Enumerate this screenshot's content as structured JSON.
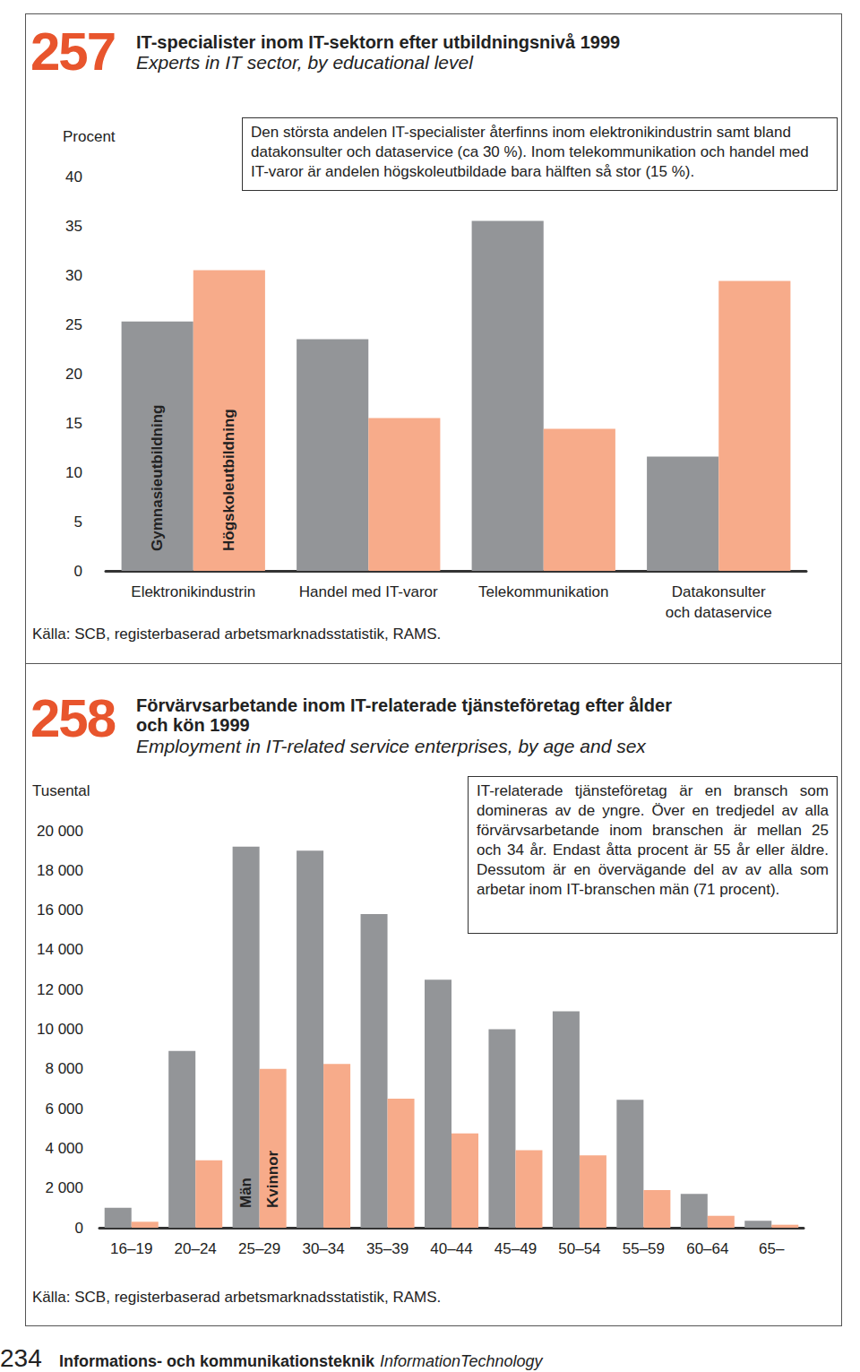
{
  "page": {
    "footer": {
      "page_number": "234",
      "section": "Informations- och kommunikationsteknik",
      "section_en": "InformationTechnology"
    }
  },
  "chart_data": [
    {
      "type": "bar",
      "number": "257",
      "title": "IT-specialister inom IT-sektorn efter utbildningsnivå 1999",
      "subtitle": "Experts in IT sector, by educational level",
      "ylabel": "Procent",
      "annotation": "Den största andelen IT-specialister återfinns inom elektronikindustrin samt bland datakonsulter och dataservice (ca 30 %). Inom telekommunikation och handel med IT-varor är andelen högskoleutbildade bara hälften så stor (15 %).",
      "source": "Källa: SCB, registerbaserad arbetsmarknadsstatistik, RAMS.",
      "categories": [
        "Elektronikindustrin",
        "Handel med IT-varor",
        "Telekommunikation",
        "Datakonsulter\noch dataservice"
      ],
      "series": [
        {
          "name": "Gymnasieutbildning",
          "color": "#939598",
          "values": [
            25.3,
            23.5,
            35.5,
            11.6
          ]
        },
        {
          "name": "Högskoleutbildning",
          "color": "#f7ab8a",
          "values": [
            30.5,
            15.5,
            14.4,
            29.4
          ]
        }
      ],
      "ylim": [
        0,
        40
      ],
      "yticks": [
        0,
        5,
        10,
        15,
        20,
        25,
        30,
        35,
        40
      ],
      "grid": false
    },
    {
      "type": "bar",
      "number": "258",
      "title": "Förvärvsarbetande inom IT-relaterade tjänsteföretag efter ålder\noch kön 1999",
      "subtitle": "Employment in IT-related service enterprises, by age and sex",
      "ylabel": "Tusental",
      "annotation": "IT-relaterade tjänsteföretag är en bransch som domineras av de yngre. Över en tredjedel av alla förvärvsarbetande inom branschen är mellan 25 och 34 år. Endast åtta procent är 55 år eller äldre. Dessutom är en övervägande del av av alla som arbetar inom IT-branschen män (71 procent).",
      "source": "Källa: SCB, registerbaserad arbetsmarknadsstatistik, RAMS.",
      "categories": [
        "16–19",
        "20–24",
        "25–29",
        "30–34",
        "35–39",
        "40–44",
        "45–49",
        "50–54",
        "55–59",
        "60–64",
        "65–"
      ],
      "series": [
        {
          "name": "Män",
          "color": "#939598",
          "values": [
            1000,
            8900,
            19200,
            19000,
            15800,
            12500,
            10000,
            10900,
            6450,
            1700,
            350
          ]
        },
        {
          "name": "Kvinnor",
          "color": "#f7ab8a",
          "values": [
            300,
            3400,
            8000,
            8250,
            6500,
            4750,
            3900,
            3650,
            1900,
            600,
            150
          ]
        }
      ],
      "ylim": [
        0,
        20000
      ],
      "yticks": [
        0,
        {
          "value": 2000,
          "label": "2 000"
        },
        {
          "value": 4000,
          "label": "4 000"
        },
        {
          "value": 6000,
          "label": "6 000"
        },
        {
          "value": 8000,
          "label": "8 000"
        },
        {
          "value": 10000,
          "label": "10 000"
        },
        {
          "value": 12000,
          "label": "12 000"
        },
        {
          "value": 14000,
          "label": "14 000"
        },
        {
          "value": 16000,
          "label": "16 000"
        },
        {
          "value": 18000,
          "label": "18 000"
        },
        {
          "value": 20000,
          "label": "20 000"
        }
      ],
      "grid": false
    }
  ]
}
